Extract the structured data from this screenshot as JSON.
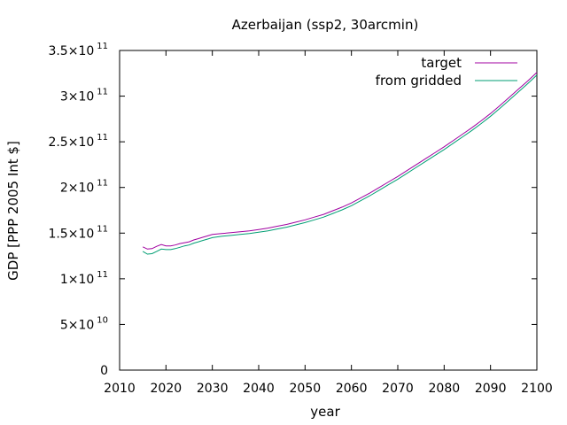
{
  "chart_data": {
    "type": "line",
    "title": "Azerbaijan (ssp2, 30arcmin)",
    "xlabel": "year",
    "ylabel": "GDP [PPP 2005 Int $]",
    "xlim": [
      2010,
      2100
    ],
    "ylim": [
      0,
      350000000000
    ],
    "grid": false,
    "legend": "top-right",
    "x_ticks": [
      "2010",
      "2020",
      "2030",
      "2040",
      "2050",
      "2060",
      "2070",
      "2080",
      "2090",
      "2100"
    ],
    "y_ticks": [
      {
        "value": 0,
        "mantissa": "0",
        "exponent": ""
      },
      {
        "value": 50000000000,
        "mantissa": "5×10",
        "exponent": "10"
      },
      {
        "value": 100000000000,
        "mantissa": "1×10",
        "exponent": "11"
      },
      {
        "value": 150000000000,
        "mantissa": "1.5×10",
        "exponent": "11"
      },
      {
        "value": 200000000000,
        "mantissa": "2×10",
        "exponent": "11"
      },
      {
        "value": 250000000000,
        "mantissa": "2.5×10",
        "exponent": "11"
      },
      {
        "value": 300000000000,
        "mantissa": "3×10",
        "exponent": "11"
      },
      {
        "value": 350000000000,
        "mantissa": "3.5×10",
        "exponent": "11"
      }
    ],
    "x": [
      2015,
      2016,
      2017,
      2018,
      2019,
      2020,
      2021,
      2022,
      2023,
      2024,
      2025,
      2026,
      2027,
      2028,
      2029,
      2030,
      2032,
      2034,
      2036,
      2038,
      2040,
      2042,
      2044,
      2046,
      2048,
      2050,
      2052,
      2054,
      2056,
      2058,
      2060,
      2062,
      2064,
      2066,
      2068,
      2070,
      2072,
      2074,
      2076,
      2078,
      2080,
      2082,
      2084,
      2086,
      2088,
      2090,
      2092,
      2094,
      2096,
      2098,
      2100
    ],
    "series": [
      {
        "name": "target",
        "color": "#a000a0",
        "values": [
          135.0,
          132.5,
          133.0,
          135.5,
          137.5,
          136.0,
          136.0,
          137.0,
          138.5,
          139.5,
          140.5,
          142.5,
          144.0,
          145.5,
          147.0,
          148.5,
          149.5,
          150.5,
          151.5,
          152.5,
          154.0,
          155.5,
          157.5,
          159.5,
          162.0,
          164.5,
          167.5,
          170.5,
          174.5,
          178.5,
          183.0,
          188.5,
          194.0,
          200.0,
          206.0,
          212.0,
          218.5,
          225.0,
          231.5,
          238.0,
          244.5,
          251.5,
          258.5,
          265.5,
          273.0,
          281.0,
          289.5,
          298.5,
          307.5,
          316.5,
          326.0
        ]
      },
      {
        "name": "from gridded",
        "color": "#009e73",
        "values": [
          130.0,
          127.0,
          127.5,
          130.0,
          132.5,
          132.0,
          132.0,
          133.0,
          134.5,
          136.0,
          137.0,
          139.0,
          140.5,
          142.0,
          143.5,
          145.0,
          146.5,
          147.5,
          148.5,
          149.5,
          151.0,
          152.5,
          154.5,
          156.5,
          159.0,
          161.5,
          164.5,
          167.5,
          171.5,
          175.5,
          180.0,
          185.5,
          191.0,
          197.0,
          203.0,
          209.0,
          215.5,
          222.0,
          228.5,
          235.0,
          241.5,
          248.5,
          255.5,
          262.5,
          270.0,
          278.0,
          286.5,
          295.5,
          304.5,
          313.5,
          323.0
        ]
      }
    ],
    "value_unit_multiplier": 1000000000
  }
}
